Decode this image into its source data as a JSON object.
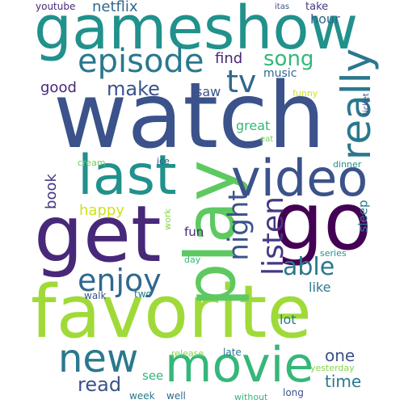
{
  "words": [
    {
      "text": "watch",
      "color": "#3b528b"
    },
    {
      "text": "gameshow",
      "color": "#21918c"
    },
    {
      "text": "favorite",
      "color": "#a0da39"
    },
    {
      "text": "get",
      "color": "#482878"
    },
    {
      "text": "go",
      "color": "#440154"
    },
    {
      "text": "play",
      "color": "#5ec962"
    },
    {
      "text": "video",
      "color": "#3b528b"
    },
    {
      "text": "last",
      "color": "#21918c"
    },
    {
      "text": "movie",
      "color": "#35b779"
    },
    {
      "text": "new",
      "color": "#2a788e"
    },
    {
      "text": "episode",
      "color": "#2a788e"
    },
    {
      "text": "really",
      "color": "#2a788e"
    },
    {
      "text": "tv",
      "color": "#31688e"
    },
    {
      "text": "enjoy",
      "color": "#31688e"
    },
    {
      "text": "listen",
      "color": "#443983"
    },
    {
      "text": "night",
      "color": "#3b528b"
    },
    {
      "text": "able",
      "color": "#2a788e"
    },
    {
      "text": "song",
      "color": "#35b779"
    },
    {
      "text": "make",
      "color": "#3b528b"
    },
    {
      "text": "read",
      "color": "#3b528b"
    },
    {
      "text": "happy",
      "color": "#d0e11c"
    },
    {
      "text": "good",
      "color": "#482878"
    },
    {
      "text": "netflix",
      "color": "#31688e"
    },
    {
      "text": "find",
      "color": "#482878"
    },
    {
      "text": "one",
      "color": "#3b528b"
    },
    {
      "text": "time",
      "color": "#2a788e"
    },
    {
      "text": "book",
      "color": "#443983"
    },
    {
      "text": "like",
      "color": "#2a788e"
    },
    {
      "text": "saw",
      "color": "#3b528b"
    },
    {
      "text": "great",
      "color": "#35b779"
    },
    {
      "text": "hour",
      "color": "#31688e"
    },
    {
      "text": "fun",
      "color": "#482878"
    },
    {
      "text": "music",
      "color": "#31688e"
    },
    {
      "text": "sleep",
      "color": "#2a788e"
    },
    {
      "text": "lot",
      "color": "#2a788e"
    },
    {
      "text": "see",
      "color": "#35b779"
    },
    {
      "text": "youtube",
      "color": "#482878"
    },
    {
      "text": "take",
      "color": "#443983"
    },
    {
      "text": "itas",
      "color": "#3b528b"
    },
    {
      "text": "funny",
      "color": "#d0e11c"
    },
    {
      "text": "ticket",
      "color": "#3b528b"
    },
    {
      "text": "eat",
      "color": "#6ece58"
    },
    {
      "text": "cream",
      "color": "#6ece58"
    },
    {
      "text": "ice",
      "color": "#3b528b"
    },
    {
      "text": "dinner",
      "color": "#21918c"
    },
    {
      "text": "work",
      "color": "#86d549"
    },
    {
      "text": "day",
      "color": "#35b779"
    },
    {
      "text": "series",
      "color": "#21918c"
    },
    {
      "text": "walk",
      "color": "#3b528b"
    },
    {
      "text": "two",
      "color": "#2a788e"
    },
    {
      "text": "release",
      "color": "#86d549"
    },
    {
      "text": "late",
      "color": "#2a788e"
    },
    {
      "text": "yesterday",
      "color": "#86d549"
    },
    {
      "text": "week",
      "color": "#2a788e"
    },
    {
      "text": "well",
      "color": "#31688e"
    },
    {
      "text": "long",
      "color": "#3b528b"
    },
    {
      "text": "without",
      "color": "#35b779"
    }
  ]
}
